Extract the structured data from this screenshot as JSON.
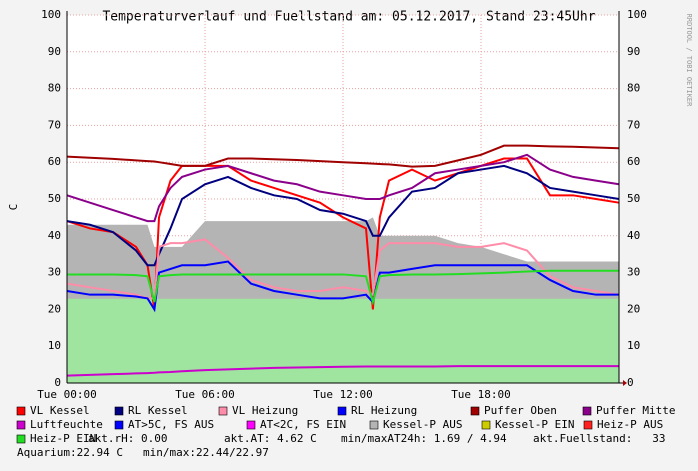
{
  "chart_data": {
    "type": "line",
    "title": "Temperaturverlauf und Fuellstand am: 05.12.2017, Stand 23:45Uhr",
    "y_label": "C",
    "watermark": "RRDTOOL / TOBI OETIKER",
    "x": [
      0,
      1,
      2,
      3,
      3.5,
      3.8,
      4,
      4.5,
      5,
      6,
      7,
      8,
      9,
      10,
      11,
      12,
      13,
      13.3,
      13.6,
      14,
      15,
      16,
      17,
      18,
      19,
      20,
      21,
      22,
      23,
      24
    ],
    "xlim": [
      0,
      24
    ],
    "xticks": [
      {
        "value": 0,
        "label": "Tue 00:00"
      },
      {
        "value": 6,
        "label": "Tue 06:00"
      },
      {
        "value": 12,
        "label": "Tue 12:00"
      },
      {
        "value": 18,
        "label": "Tue 18:00"
      }
    ],
    "ylim": [
      0,
      100
    ],
    "yticks": [
      0,
      10,
      20,
      30,
      40,
      50,
      60,
      70,
      80,
      90,
      100
    ],
    "grid": true,
    "fill": {
      "color": "#9fe49f",
      "values": [
        22.9,
        22.9,
        22.9,
        22.9,
        22.9,
        22.9,
        22.9,
        22.9,
        22.9,
        22.9,
        22.9,
        22.9,
        22.9,
        22.9,
        22.9,
        22.9,
        22.9,
        22.9,
        22.9,
        22.9,
        22.9,
        22.9,
        22.9,
        22.9,
        22.9,
        22.9,
        22.9,
        22.9,
        22.9,
        22.9
      ]
    },
    "series": [
      {
        "name": "VL Kessel",
        "color": "#ff0000",
        "values": [
          44,
          42,
          41,
          37,
          32,
          20,
          45,
          55,
          59,
          59,
          59,
          55,
          53,
          51,
          49,
          45,
          42,
          20,
          45,
          55,
          58,
          55,
          57,
          59,
          61,
          61,
          51,
          51,
          50,
          49
        ]
      },
      {
        "name": "RL Kessel",
        "color": "#000080",
        "values": [
          44,
          43,
          41,
          36,
          32,
          32,
          35,
          42,
          50,
          54,
          56,
          53,
          51,
          50,
          47,
          46,
          44,
          40,
          40,
          45,
          52,
          53,
          57,
          58,
          59,
          57,
          53,
          52,
          51,
          50
        ]
      },
      {
        "name": "VL Heizung",
        "color": "#ff8ca8",
        "values": [
          27,
          26,
          25,
          24,
          23,
          23,
          37,
          38,
          38,
          39,
          34,
          28,
          26,
          25,
          25,
          26,
          25,
          24,
          36,
          38,
          38,
          38,
          37,
          37,
          38,
          36,
          29,
          26,
          25,
          24
        ]
      },
      {
        "name": "RL Heizung",
        "color": "#0000ff",
        "values": [
          25,
          24,
          24,
          23.5,
          23,
          20,
          30,
          31,
          32,
          32,
          33,
          27,
          25,
          24,
          23,
          23,
          24,
          22,
          30,
          30,
          31,
          32,
          32,
          32,
          32,
          32,
          28,
          25,
          24,
          24
        ]
      },
      {
        "name": "Puffer Oben",
        "color": "#a00000",
        "values": [
          61.5,
          61.2,
          60.9,
          60.5,
          60.3,
          60.2,
          60,
          59.5,
          59,
          59,
          61,
          61,
          60.8,
          60.6,
          60.3,
          60,
          59.7,
          59.6,
          59.5,
          59.4,
          58.8,
          59,
          60.5,
          62,
          64.5,
          64.5,
          64.3,
          64.2,
          64,
          63.8
        ]
      },
      {
        "name": "Puffer Mitte",
        "color": "#8b008b",
        "values": [
          51,
          49,
          47,
          45,
          44,
          44,
          48,
          53,
          56,
          58,
          59,
          57,
          55,
          54,
          52,
          51,
          50,
          50,
          50,
          51,
          53,
          57,
          58,
          59,
          60,
          62,
          58,
          56,
          55,
          54
        ]
      },
      {
        "name": "Luftfeuchte",
        "color": "#cc00cc",
        "values": [
          2,
          2.2,
          2.4,
          2.6,
          2.7,
          2.8,
          2.9,
          3,
          3.2,
          3.5,
          3.7,
          3.9,
          4.1,
          4.2,
          4.3,
          4.4,
          4.5,
          4.5,
          4.5,
          4.5,
          4.5,
          4.5,
          4.6,
          4.6,
          4.6,
          4.6,
          4.6,
          4.6,
          4.6,
          4.6
        ]
      },
      {
        "name": "AT>5C, FS AUS",
        "color": "#0000ff"
      },
      {
        "name": "AT<2C, FS EIN",
        "color": "#ff00ff"
      },
      {
        "name": "Kessel-P AUS",
        "color": "#b4b4b4",
        "style": "area",
        "values": [
          43,
          43,
          43,
          43,
          43,
          37,
          37,
          37,
          37,
          44,
          44,
          44,
          44,
          44,
          44,
          44,
          44,
          45,
          40,
          40,
          40,
          40,
          38,
          37,
          35,
          33,
          33,
          33,
          33,
          33
        ]
      },
      {
        "name": "Kessel-P EIN",
        "color": "#cccc00"
      },
      {
        "name": "Heiz-P AUS",
        "color": "#ff2020"
      },
      {
        "name": "Heiz-P EIN",
        "color": "#22dd22",
        "values": [
          29.5,
          29.5,
          29.5,
          29.3,
          29,
          22,
          29,
          29.3,
          29.5,
          29.5,
          29.5,
          29.5,
          29.5,
          29.5,
          29.5,
          29.5,
          29,
          22,
          29,
          29.3,
          29.5,
          29.5,
          29.6,
          29.8,
          30,
          30.3,
          30.5,
          30.5,
          30.5,
          30.5
        ]
      }
    ],
    "info": [
      "akt.rH: 0.00",
      "akt.AT: 4.62 C",
      "min/maxAT24h: 1.69 / 4.94",
      "akt.Fuellstand:   33",
      "Aquarium:22.94 C",
      "min/max:22.44/22.97"
    ]
  }
}
